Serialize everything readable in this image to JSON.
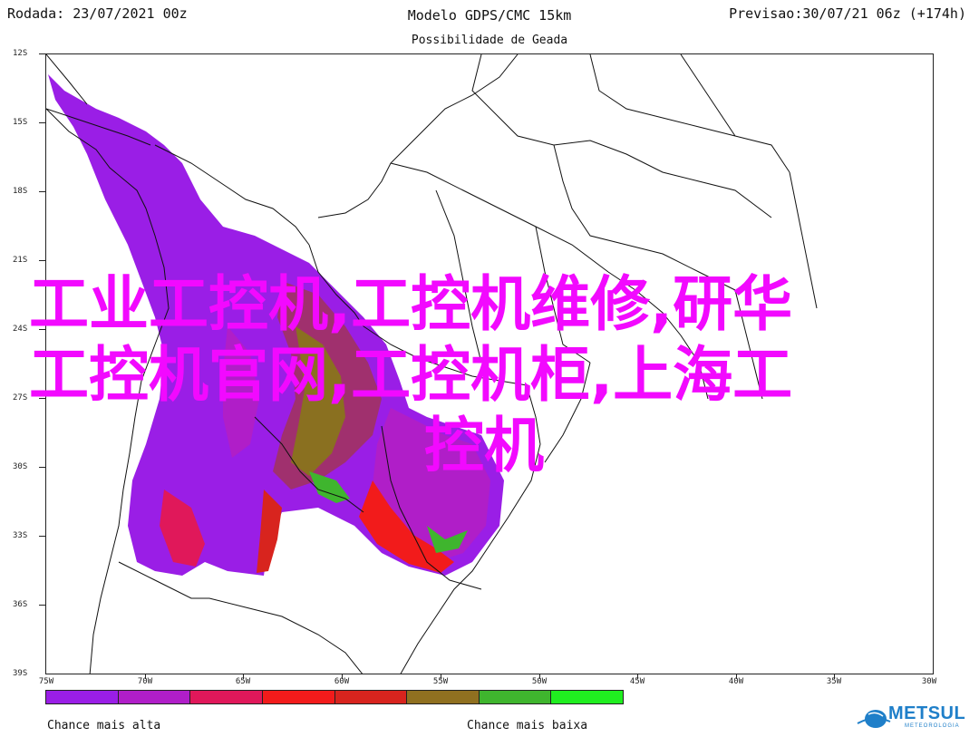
{
  "header": {
    "run_date": "Rodada: 23/07/2021 00z",
    "model": "Modelo GDPS/CMC 15km",
    "forecast": "Previsao:30/07/21 06z (+174h)"
  },
  "subtitle": "Possibilidade de Geada",
  "latitude_labels": [
    "12S",
    "15S",
    "18S",
    "21S",
    "24S",
    "27S",
    "30S",
    "33S",
    "36S",
    "39S"
  ],
  "longitude_labels": [
    "75W",
    "70W",
    "65W",
    "60W",
    "55W",
    "50W",
    "45W",
    "40W",
    "35W",
    "30W"
  ],
  "colorbar": {
    "colors": [
      "#9a1ee6",
      "#b01ec8",
      "#e0185a",
      "#f21b1b",
      "#d8241e",
      "#907020",
      "#3fb52e",
      "#20ee20"
    ]
  },
  "legend": {
    "high_label": "Chance mais alta",
    "low_label": "Chance mais baixa"
  },
  "logo": {
    "name": "METSUL",
    "subtitle": "METEOROLOGIA"
  },
  "watermark": {
    "line1": "工业工控机,工控机维修,研华",
    "line2": "工控机官网,工控机柜,上海工",
    "line3": "控机"
  }
}
